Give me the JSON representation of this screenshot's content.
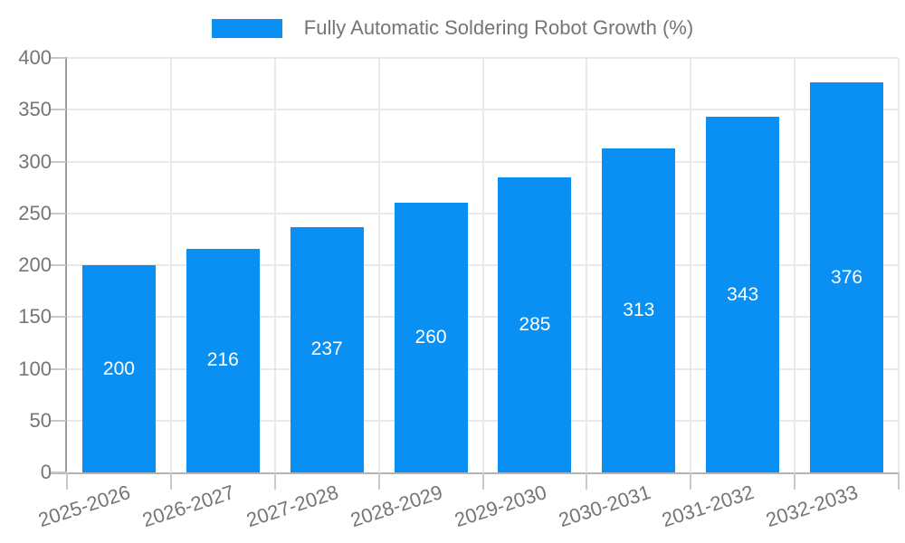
{
  "chart_data": {
    "type": "bar",
    "title": "Fully Automatic Soldering Robot Growth (%)",
    "categories": [
      "2025-2026",
      "2026-2027",
      "2027-2028",
      "2028-2029",
      "2029-2030",
      "2030-2031",
      "2031-2032",
      "2032-2033"
    ],
    "values": [
      200,
      216,
      237,
      260,
      285,
      313,
      343,
      376
    ],
    "series_name": "Fully Automatic Soldering Robot Growth (%)",
    "xlabel": "",
    "ylabel": "",
    "ylim": [
      0,
      400
    ],
    "yticks": [
      0,
      50,
      100,
      150,
      200,
      250,
      300,
      350,
      400
    ],
    "grid": true,
    "legend_position": "top",
    "value_labels": "centered inside bars",
    "colors": {
      "bar": "#0a8ff2",
      "axis_text": "#757575",
      "value_label": "#ffffff",
      "gridline": "#e9e9e9",
      "y_axis_line": "#9e9e9e",
      "x_axis_line": "#b3b3b3",
      "tick": "#c9c9c9",
      "background": "#ffffff"
    }
  }
}
